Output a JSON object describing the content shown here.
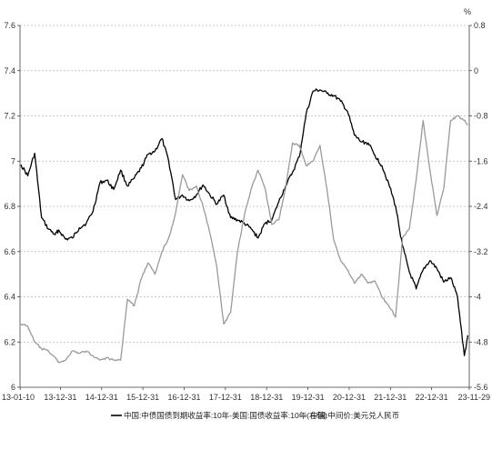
{
  "chart_data": {
    "type": "line",
    "right_axis_unit": "%",
    "x_ticks": [
      "13-01-10",
      "13-12-31",
      "14-12-31",
      "15-12-31",
      "16-12-31",
      "17-12-31",
      "18-12-31",
      "19-12-31",
      "20-12-31",
      "21-12-31",
      "22-12-31",
      "23-11-29"
    ],
    "left_axis": {
      "ylim": [
        6,
        7.6
      ],
      "ticks": [
        "6",
        "6.2",
        "6.4",
        "6.6",
        "6.8",
        "7",
        "7.2",
        "7.4",
        "7.6"
      ]
    },
    "right_axis": {
      "ylim": [
        -5.6,
        0.8
      ],
      "inverted": true,
      "ticks": [
        "0.8",
        "0",
        "-0.8",
        "-1.6",
        "-2.4",
        "-3.2",
        "-4",
        "-4.8",
        "-5.6"
      ]
    },
    "grid": "dashed horizontal at left-axis ticks",
    "series": [
      {
        "name": "中国:中债国债到期收益率:10年-美国:国债收益率:10年(右轴)",
        "axis": "right",
        "color": "#000000",
        "points": [
          [
            "2013-01",
            -1.66
          ],
          [
            "2013-03",
            -1.86
          ],
          [
            "2013-05",
            -1.46
          ],
          [
            "2013-07",
            -2.6
          ],
          [
            "2013-09",
            -2.8
          ],
          [
            "2013-11",
            -2.9
          ],
          [
            "2013-12",
            -2.82
          ],
          [
            "2014-02",
            -2.98
          ],
          [
            "2014-04",
            -2.96
          ],
          [
            "2014-06",
            -2.78
          ],
          [
            "2014-08",
            -2.7
          ],
          [
            "2014-10",
            -2.48
          ],
          [
            "2014-12",
            -1.98
          ],
          [
            "2015-02",
            -1.94
          ],
          [
            "2015-04",
            -2.1
          ],
          [
            "2015-06",
            -1.76
          ],
          [
            "2015-08",
            -2.04
          ],
          [
            "2015-10",
            -1.9
          ],
          [
            "2015-12",
            -1.72
          ],
          [
            "2016-02",
            -1.48
          ],
          [
            "2016-04",
            -1.42
          ],
          [
            "2016-06",
            -1.2
          ],
          [
            "2016-08",
            -1.6
          ],
          [
            "2016-10",
            -2.28
          ],
          [
            "2016-12",
            -2.2
          ],
          [
            "2017-02",
            -2.3
          ],
          [
            "2017-04",
            -2.2
          ],
          [
            "2017-06",
            -2.02
          ],
          [
            "2017-08",
            -2.2
          ],
          [
            "2017-10",
            -2.36
          ],
          [
            "2017-12",
            -2.2
          ],
          [
            "2018-02",
            -2.6
          ],
          [
            "2018-04",
            -2.64
          ],
          [
            "2018-06",
            -2.7
          ],
          [
            "2018-08",
            -2.8
          ],
          [
            "2018-10",
            -2.96
          ],
          [
            "2018-12",
            -2.7
          ],
          [
            "2019-02",
            -2.64
          ],
          [
            "2019-04",
            -2.32
          ],
          [
            "2019-06",
            -2.04
          ],
          [
            "2019-08",
            -1.8
          ],
          [
            "2019-10",
            -1.52
          ],
          [
            "2019-12",
            -0.76
          ],
          [
            "2020-02",
            -0.36
          ],
          [
            "2020-04",
            -0.34
          ],
          [
            "2020-06",
            -0.4
          ],
          [
            "2020-08",
            -0.44
          ],
          [
            "2020-10",
            -0.54
          ],
          [
            "2020-12",
            -0.72
          ],
          [
            "2021-02",
            -1.14
          ],
          [
            "2021-04",
            -1.26
          ],
          [
            "2021-06",
            -1.28
          ],
          [
            "2021-08",
            -1.5
          ],
          [
            "2021-10",
            -1.68
          ],
          [
            "2021-12",
            -2.0
          ],
          [
            "2022-02",
            -2.4
          ],
          [
            "2022-04",
            -3.1
          ],
          [
            "2022-06",
            -3.56
          ],
          [
            "2022-08",
            -3.86
          ],
          [
            "2022-10",
            -3.52
          ],
          [
            "2022-12",
            -3.36
          ],
          [
            "2023-02",
            -3.5
          ],
          [
            "2023-04",
            -3.74
          ],
          [
            "2023-06",
            -3.66
          ],
          [
            "2023-08",
            -4.0
          ],
          [
            "2023-10",
            -5.04
          ],
          [
            "2023-11",
            -4.68
          ]
        ]
      },
      {
        "name": "中国:中间价:美元兑人民币",
        "axis": "left",
        "color": "#9a9a9a",
        "points": [
          [
            "2013-01",
            6.28
          ],
          [
            "2013-03",
            6.27
          ],
          [
            "2013-05",
            6.2
          ],
          [
            "2013-07",
            6.17
          ],
          [
            "2013-09",
            6.16
          ],
          [
            "2013-11",
            6.13
          ],
          [
            "2013-12",
            6.11
          ],
          [
            "2014-02",
            6.12
          ],
          [
            "2014-04",
            6.16
          ],
          [
            "2014-06",
            6.15
          ],
          [
            "2014-08",
            6.16
          ],
          [
            "2014-10",
            6.14
          ],
          [
            "2014-12",
            6.12
          ],
          [
            "2015-02",
            6.13
          ],
          [
            "2015-04",
            6.12
          ],
          [
            "2015-06",
            6.12
          ],
          [
            "2015-08",
            6.39
          ],
          [
            "2015-10",
            6.36
          ],
          [
            "2015-12",
            6.48
          ],
          [
            "2016-02",
            6.55
          ],
          [
            "2016-04",
            6.5
          ],
          [
            "2016-06",
            6.6
          ],
          [
            "2016-08",
            6.66
          ],
          [
            "2016-10",
            6.77
          ],
          [
            "2016-12",
            6.94
          ],
          [
            "2017-02",
            6.87
          ],
          [
            "2017-04",
            6.89
          ],
          [
            "2017-06",
            6.8
          ],
          [
            "2017-08",
            6.68
          ],
          [
            "2017-10",
            6.53
          ],
          [
            "2017-12",
            6.28
          ],
          [
            "2018-02",
            6.33
          ],
          [
            "2018-04",
            6.6
          ],
          [
            "2018-06",
            6.76
          ],
          [
            "2018-08",
            6.88
          ],
          [
            "2018-10",
            6.96
          ],
          [
            "2018-12",
            6.88
          ],
          [
            "2019-02",
            6.72
          ],
          [
            "2019-04",
            6.74
          ],
          [
            "2019-06",
            6.88
          ],
          [
            "2019-08",
            7.08
          ],
          [
            "2019-10",
            7.07
          ],
          [
            "2019-12",
            6.98
          ],
          [
            "2020-02",
            7.0
          ],
          [
            "2020-04",
            7.07
          ],
          [
            "2020-06",
            6.88
          ],
          [
            "2020-08",
            6.65
          ],
          [
            "2020-10",
            6.56
          ],
          [
            "2020-12",
            6.52
          ],
          [
            "2021-02",
            6.46
          ],
          [
            "2021-04",
            6.5
          ],
          [
            "2021-06",
            6.46
          ],
          [
            "2021-08",
            6.47
          ],
          [
            "2021-10",
            6.4
          ],
          [
            "2021-12",
            6.36
          ],
          [
            "2022-02",
            6.31
          ],
          [
            "2022-04",
            6.66
          ],
          [
            "2022-06",
            6.7
          ],
          [
            "2022-08",
            6.92
          ],
          [
            "2022-10",
            7.18
          ],
          [
            "2022-12",
            6.96
          ],
          [
            "2023-02",
            6.76
          ],
          [
            "2023-04",
            6.88
          ],
          [
            "2023-06",
            7.18
          ],
          [
            "2023-08",
            7.2
          ],
          [
            "2023-10",
            7.18
          ],
          [
            "2023-11",
            7.16
          ]
        ]
      }
    ]
  }
}
